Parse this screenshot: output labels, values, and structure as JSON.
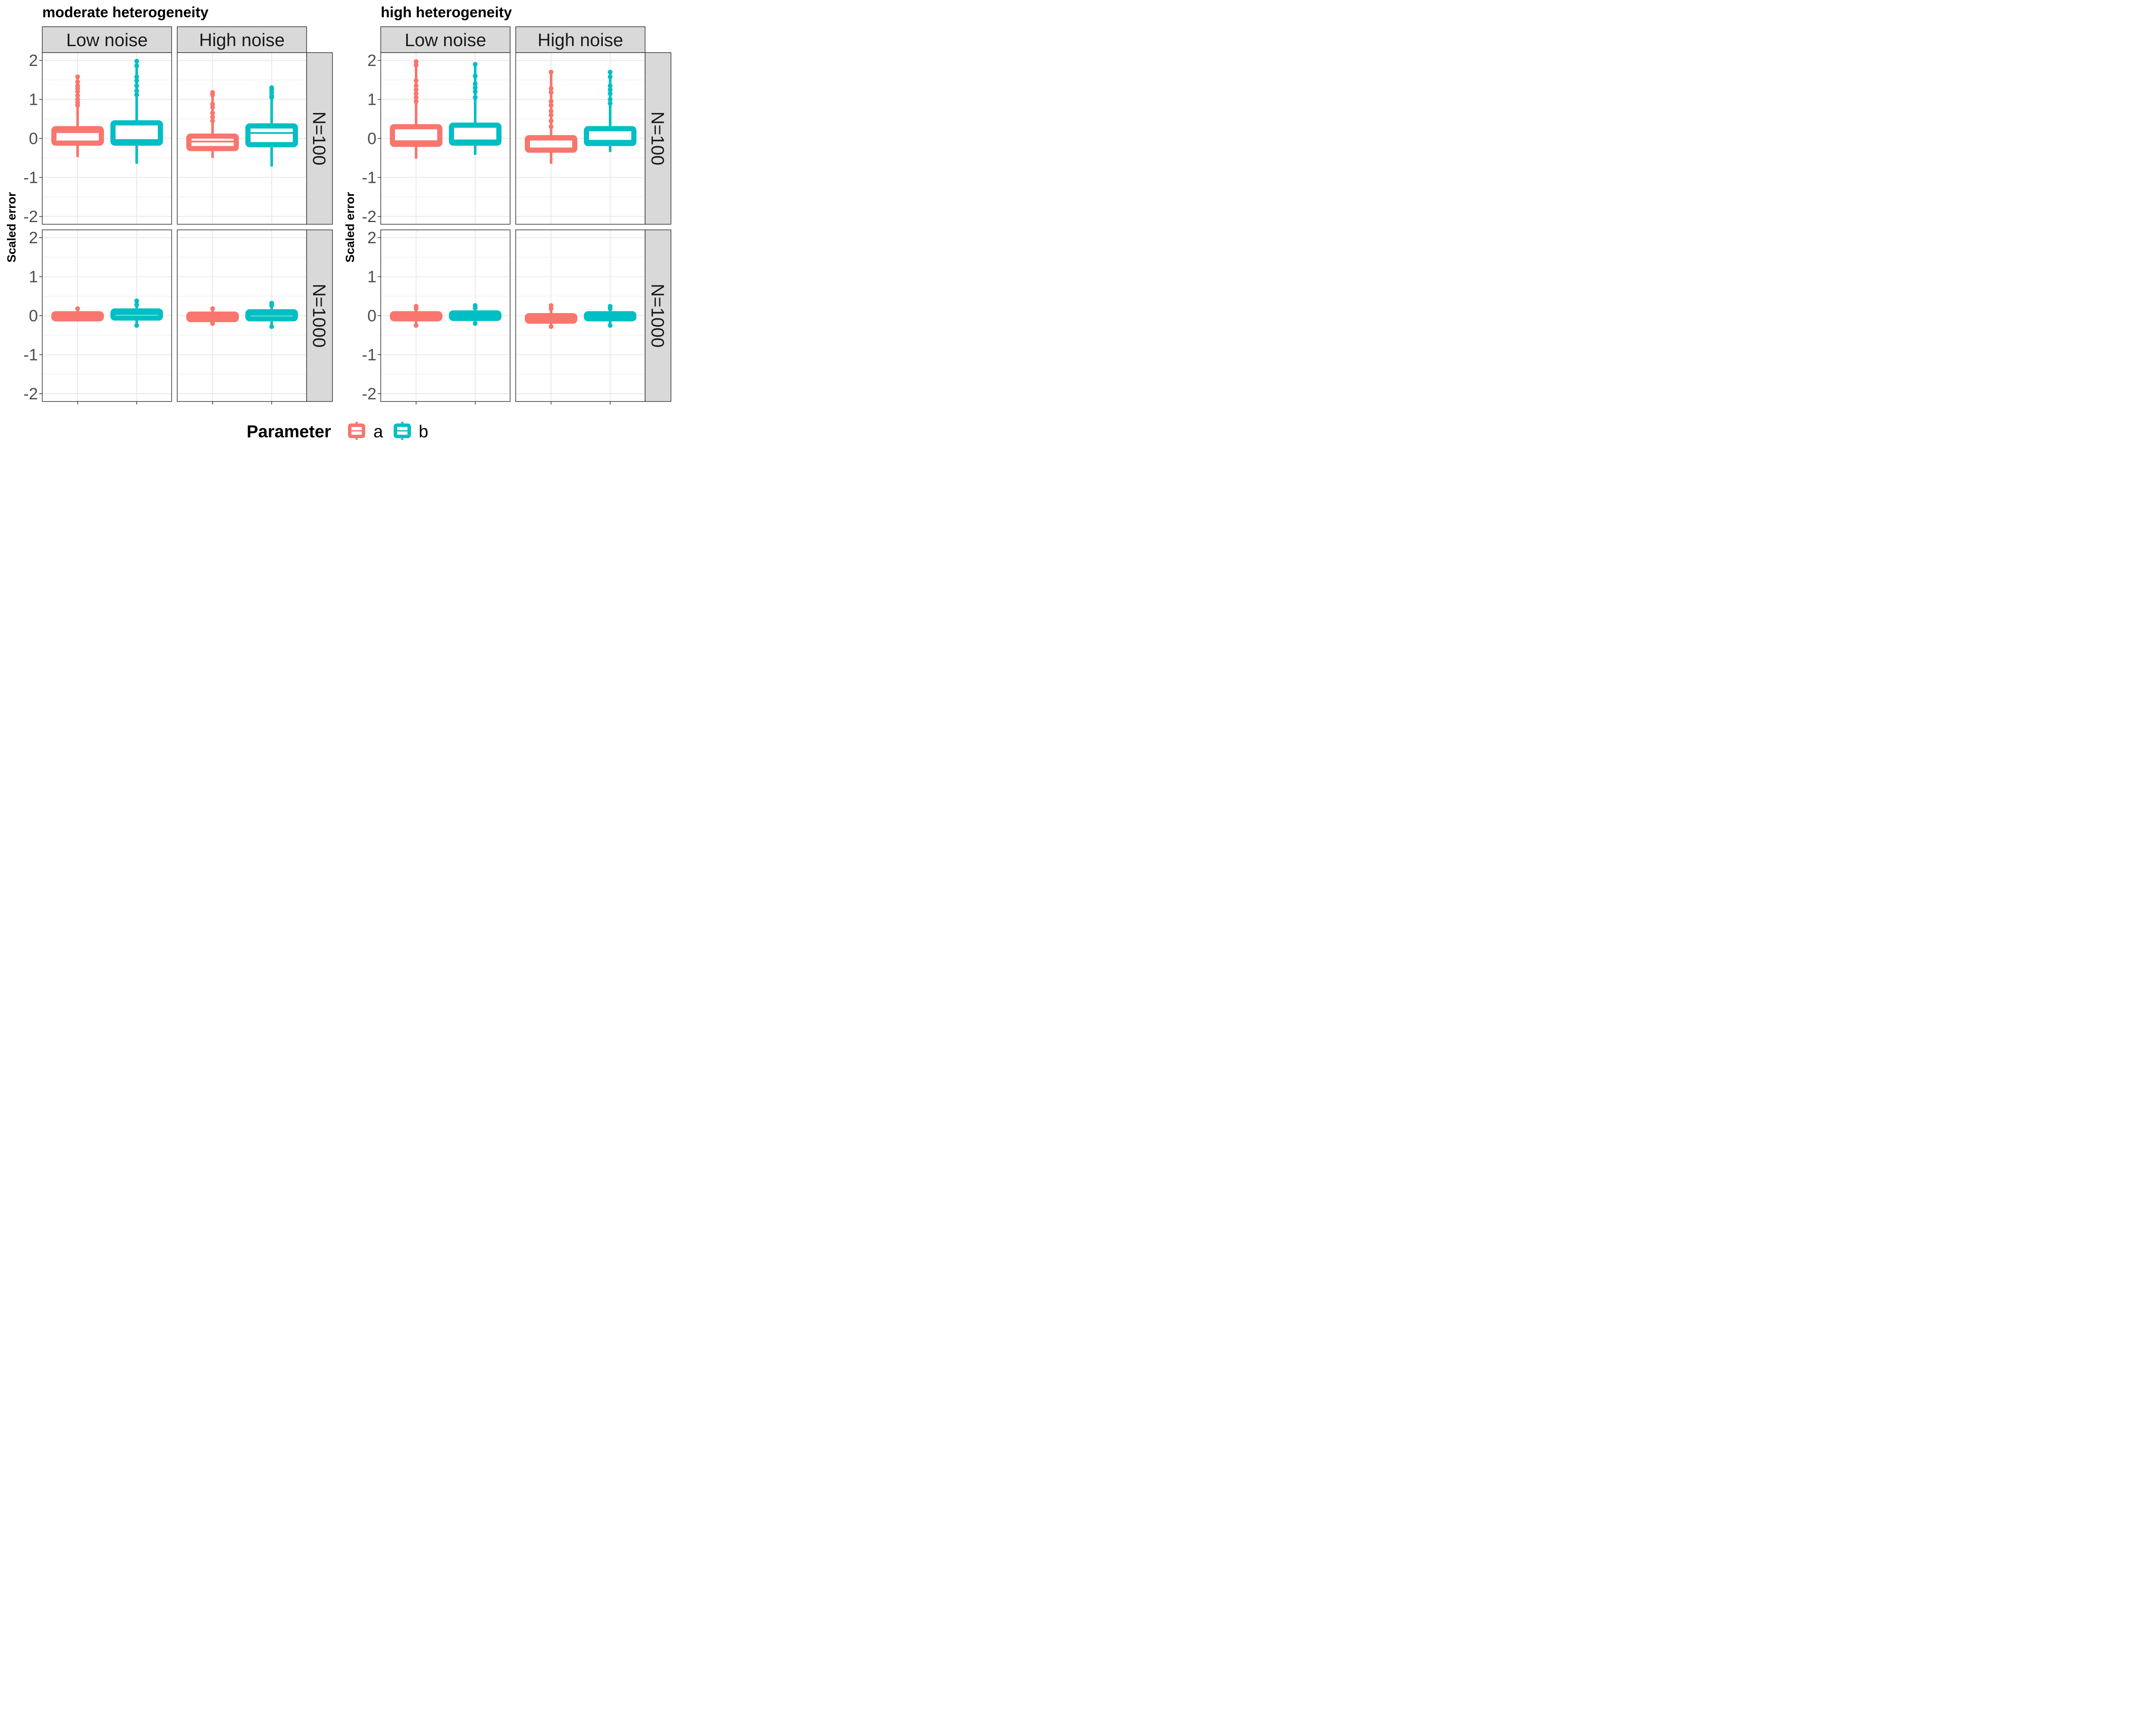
{
  "colors": {
    "a": "#F8766D",
    "b": "#00BFC4",
    "strip": "#D9D9D9",
    "grid": "#EBEBEB"
  },
  "legend": {
    "title": "Parameter",
    "entries": [
      "a",
      "b"
    ]
  },
  "chart_data": [
    {
      "type": "boxplot",
      "title": "moderate heterogeneity",
      "ylabel": "Scaled error",
      "ylim": [
        -2.2,
        2.2
      ],
      "yticks": [
        2,
        1,
        0,
        -1,
        -2
      ],
      "columns": [
        "Low noise",
        "High noise"
      ],
      "rows": [
        "N=100",
        "N=1000"
      ],
      "facets": [
        {
          "row": "N=100",
          "col": "Low noise",
          "boxes": [
            {
              "parameter": "a",
              "lower_whisker": -0.48,
              "q1": -0.12,
              "median": 0.16,
              "q3": 0.25,
              "upper_whisker": 1.6,
              "outliers": [
                1.58,
                1.45,
                1.35,
                1.28,
                1.2,
                1.1,
                1.0,
                0.92,
                0.85
              ]
            },
            {
              "parameter": "b",
              "lower_whisker": -0.65,
              "q1": -0.12,
              "median": -0.04,
              "q3": 0.4,
              "upper_whisker": 2.0,
              "outliers": [
                1.98,
                1.86,
                1.58,
                1.48,
                1.35,
                1.22,
                1.12
              ]
            }
          ]
        },
        {
          "row": "N=100",
          "col": "High noise",
          "boxes": [
            {
              "parameter": "a",
              "lower_whisker": -0.5,
              "q1": -0.26,
              "median": -0.08,
              "q3": 0.06,
              "upper_whisker": 1.2,
              "outliers": [
                1.18,
                1.12,
                0.88,
                0.8,
                0.65,
                0.55,
                0.45
              ]
            },
            {
              "parameter": "b",
              "lower_whisker": -0.72,
              "q1": -0.16,
              "median": 0.14,
              "q3": 0.32,
              "upper_whisker": 1.32,
              "outliers": [
                1.3,
                1.25,
                1.18,
                1.1,
                1.05
              ]
            }
          ]
        },
        {
          "row": "N=1000",
          "col": "Low noise",
          "boxes": [
            {
              "parameter": "a",
              "lower_whisker": -0.15,
              "q1": -0.08,
              "median": -0.02,
              "q3": 0.05,
              "upper_whisker": 0.18,
              "outliers": [
                0.18
              ]
            },
            {
              "parameter": "b",
              "lower_whisker": -0.26,
              "q1": -0.06,
              "median": 0.04,
              "q3": 0.12,
              "upper_whisker": 0.38,
              "outliers": [
                0.38,
                0.28,
                -0.25
              ]
            }
          ]
        },
        {
          "row": "N=1000",
          "col": "High noise",
          "boxes": [
            {
              "parameter": "a",
              "lower_whisker": -0.2,
              "q1": -0.1,
              "median": -0.04,
              "q3": 0.04,
              "upper_whisker": 0.18,
              "outliers": [
                0.18,
                -0.2
              ]
            },
            {
              "parameter": "b",
              "lower_whisker": -0.28,
              "q1": -0.08,
              "median": 0.02,
              "q3": 0.1,
              "upper_whisker": 0.32,
              "outliers": [
                0.32,
                0.26,
                -0.28
              ]
            }
          ]
        }
      ]
    },
    {
      "type": "boxplot",
      "title": "high heterogeneity",
      "ylabel": "Scaled error",
      "ylim": [
        -2.2,
        2.2
      ],
      "yticks": [
        2,
        1,
        0,
        -1,
        -2
      ],
      "columns": [
        "Low noise",
        "High noise"
      ],
      "rows": [
        "N=100",
        "N=1000"
      ],
      "facets": [
        {
          "row": "N=100",
          "col": "Low noise",
          "boxes": [
            {
              "parameter": "a",
              "lower_whisker": -0.52,
              "q1": -0.15,
              "median": -0.07,
              "q3": 0.3,
              "upper_whisker": 2.0,
              "outliers": [
                1.97,
                1.88,
                1.48,
                1.35,
                1.25,
                1.15,
                1.05,
                0.95
              ]
            },
            {
              "parameter": "b",
              "lower_whisker": -0.42,
              "q1": -0.12,
              "median": -0.05,
              "q3": 0.34,
              "upper_whisker": 1.9,
              "outliers": [
                1.9,
                1.6,
                1.4,
                1.3,
                1.2,
                1.05
              ]
            }
          ]
        },
        {
          "row": "N=100",
          "col": "High noise",
          "boxes": [
            {
              "parameter": "a",
              "lower_whisker": -0.65,
              "q1": -0.3,
              "median": -0.03,
              "q3": 0.02,
              "upper_whisker": 1.72,
              "outliers": [
                1.7,
                1.28,
                1.18,
                0.95,
                0.85,
                0.7,
                0.6,
                0.45,
                0.3
              ]
            },
            {
              "parameter": "b",
              "lower_whisker": -0.35,
              "q1": -0.13,
              "median": -0.06,
              "q3": 0.25,
              "upper_whisker": 1.72,
              "outliers": [
                1.7,
                1.58,
                1.35,
                1.25,
                1.15,
                1.0,
                0.9
              ]
            }
          ]
        },
        {
          "row": "N=1000",
          "col": "Low noise",
          "boxes": [
            {
              "parameter": "a",
              "lower_whisker": -0.25,
              "q1": -0.08,
              "median": -0.02,
              "q3": 0.05,
              "upper_whisker": 0.24,
              "outliers": [
                0.24,
                0.18,
                -0.25
              ]
            },
            {
              "parameter": "b",
              "lower_whisker": -0.2,
              "q1": -0.07,
              "median": 0.0,
              "q3": 0.07,
              "upper_whisker": 0.26,
              "outliers": [
                0.26,
                0.2,
                -0.2
              ]
            }
          ]
        },
        {
          "row": "N=1000",
          "col": "High noise",
          "boxes": [
            {
              "parameter": "a",
              "lower_whisker": -0.28,
              "q1": -0.14,
              "median": -0.08,
              "q3": 0.0,
              "upper_whisker": 0.26,
              "outliers": [
                0.26,
                0.18,
                -0.28
              ]
            },
            {
              "parameter": "b",
              "lower_whisker": -0.25,
              "q1": -0.08,
              "median": -0.02,
              "q3": 0.05,
              "upper_whisker": 0.24,
              "outliers": [
                0.24,
                0.18,
                -0.25
              ]
            }
          ]
        }
      ]
    }
  ]
}
